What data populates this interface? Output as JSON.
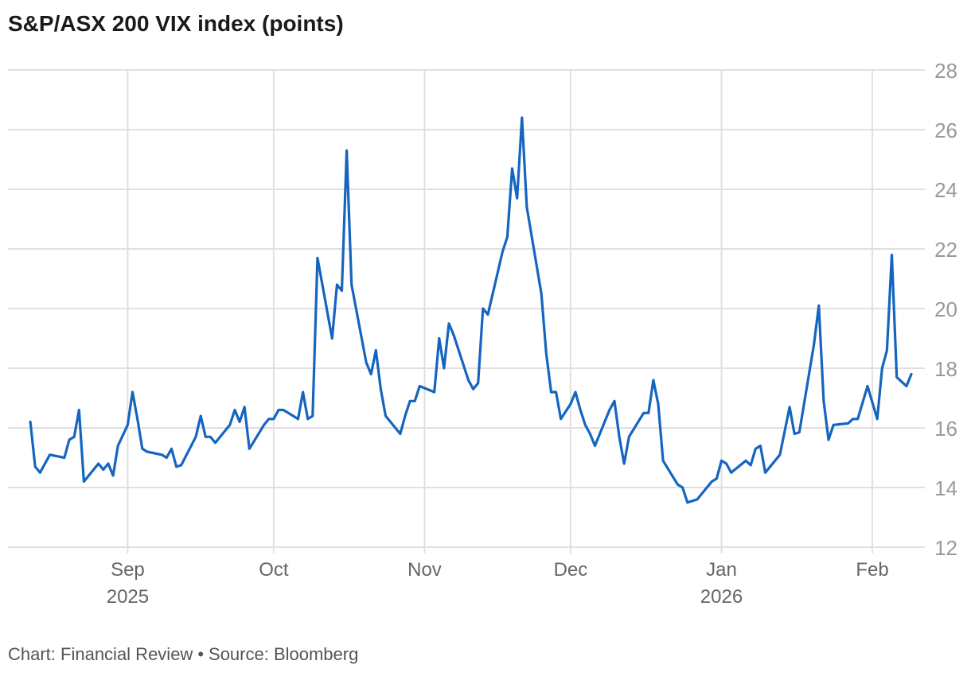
{
  "title": "S&P/ASX 200 VIX index (points)",
  "footer": {
    "chart_credit": "Chart: Financial Review",
    "separator": "•",
    "source": "Source: Bloomberg"
  },
  "colors": {
    "line": "#1565c0",
    "grid": "#e0e0e0",
    "tick_text": "#999999",
    "month_text": "#666666"
  },
  "chart_data": {
    "type": "line",
    "title": "S&P/ASX 200 VIX index (points)",
    "xlabel": "",
    "ylabel": "",
    "ylim": [
      12,
      28
    ],
    "yticks": [
      12,
      14,
      16,
      18,
      20,
      22,
      24,
      26,
      28
    ],
    "y_axis_side": "right",
    "grid": true,
    "xlim": [
      "2025-08-11",
      "2026-02-09"
    ],
    "xticks": [
      {
        "date": "2025-09-01",
        "label": "Sep",
        "year": "2025"
      },
      {
        "date": "2025-10-01",
        "label": "Oct",
        "year": ""
      },
      {
        "date": "2025-11-01",
        "label": "Nov",
        "year": ""
      },
      {
        "date": "2025-12-01",
        "label": "Dec",
        "year": ""
      },
      {
        "date": "2026-01-01",
        "label": "Jan",
        "year": "2026"
      },
      {
        "date": "2026-02-01",
        "label": "Feb",
        "year": ""
      }
    ],
    "series": [
      {
        "color": "#1565c0",
        "points": [
          [
            "2025-08-12",
            16.2
          ],
          [
            "2025-08-13",
            14.7
          ],
          [
            "2025-08-14",
            14.5
          ],
          [
            "2025-08-15",
            14.8
          ],
          [
            "2025-08-16",
            15.1
          ],
          [
            "2025-08-19",
            15.0
          ],
          [
            "2025-08-20",
            15.6
          ],
          [
            "2025-08-21",
            15.7
          ],
          [
            "2025-08-22",
            16.6
          ],
          [
            "2025-08-23",
            14.2
          ],
          [
            "2025-08-26",
            14.8
          ],
          [
            "2025-08-27",
            14.6
          ],
          [
            "2025-08-28",
            14.8
          ],
          [
            "2025-08-29",
            14.4
          ],
          [
            "2025-08-30",
            15.4
          ],
          [
            "2025-09-01",
            16.1
          ],
          [
            "2025-09-02",
            17.2
          ],
          [
            "2025-09-03",
            16.3
          ],
          [
            "2025-09-04",
            15.3
          ],
          [
            "2025-09-05",
            15.2
          ],
          [
            "2025-09-08",
            15.1
          ],
          [
            "2025-09-09",
            15.0
          ],
          [
            "2025-09-10",
            15.3
          ],
          [
            "2025-09-11",
            14.7
          ],
          [
            "2025-09-12",
            14.75
          ],
          [
            "2025-09-15",
            15.7
          ],
          [
            "2025-09-16",
            16.4
          ],
          [
            "2025-09-17",
            15.7
          ],
          [
            "2025-09-18",
            15.7
          ],
          [
            "2025-09-19",
            15.5
          ],
          [
            "2025-09-22",
            16.1
          ],
          [
            "2025-09-23",
            16.6
          ],
          [
            "2025-09-24",
            16.2
          ],
          [
            "2025-09-25",
            16.7
          ],
          [
            "2025-09-26",
            15.3
          ],
          [
            "2025-09-29",
            16.1
          ],
          [
            "2025-09-30",
            16.3
          ],
          [
            "2025-10-01",
            16.3
          ],
          [
            "2025-10-02",
            16.6
          ],
          [
            "2025-10-03",
            16.6
          ],
          [
            "2025-10-06",
            16.3
          ],
          [
            "2025-10-07",
            17.2
          ],
          [
            "2025-10-08",
            16.3
          ],
          [
            "2025-10-09",
            16.4
          ],
          [
            "2025-10-10",
            21.7
          ],
          [
            "2025-10-13",
            19.0
          ],
          [
            "2025-10-14",
            20.8
          ],
          [
            "2025-10-15",
            20.6
          ],
          [
            "2025-10-16",
            25.3
          ],
          [
            "2025-10-17",
            20.8
          ],
          [
            "2025-10-20",
            18.2
          ],
          [
            "2025-10-21",
            17.8
          ],
          [
            "2025-10-22",
            18.6
          ],
          [
            "2025-10-23",
            17.3
          ],
          [
            "2025-10-24",
            16.4
          ],
          [
            "2025-10-27",
            15.8
          ],
          [
            "2025-10-28",
            16.4
          ],
          [
            "2025-10-29",
            16.9
          ],
          [
            "2025-10-30",
            16.9
          ],
          [
            "2025-10-31",
            17.4
          ],
          [
            "2025-11-03",
            17.2
          ],
          [
            "2025-11-04",
            19.0
          ],
          [
            "2025-11-05",
            18.0
          ],
          [
            "2025-11-06",
            19.5
          ],
          [
            "2025-11-07",
            19.1
          ],
          [
            "2025-11-10",
            17.6
          ],
          [
            "2025-11-11",
            17.3
          ],
          [
            "2025-11-12",
            17.5
          ],
          [
            "2025-11-13",
            20.0
          ],
          [
            "2025-11-14",
            19.8
          ],
          [
            "2025-11-17",
            21.9
          ],
          [
            "2025-11-18",
            22.4
          ],
          [
            "2025-11-19",
            24.7
          ],
          [
            "2025-11-20",
            23.7
          ],
          [
            "2025-11-21",
            26.4
          ],
          [
            "2025-11-22",
            23.4
          ],
          [
            "2025-11-25",
            20.5
          ],
          [
            "2025-11-26",
            18.5
          ],
          [
            "2025-11-27",
            17.2
          ],
          [
            "2025-11-28",
            17.2
          ],
          [
            "2025-11-29",
            16.3
          ],
          [
            "2025-12-01",
            16.8
          ],
          [
            "2025-12-02",
            17.2
          ],
          [
            "2025-12-03",
            16.6
          ],
          [
            "2025-12-04",
            16.1
          ],
          [
            "2025-12-05",
            15.8
          ],
          [
            "2025-12-06",
            15.4
          ],
          [
            "2025-12-09",
            16.6
          ],
          [
            "2025-12-10",
            16.9
          ],
          [
            "2025-12-11",
            15.7
          ],
          [
            "2025-12-12",
            14.8
          ],
          [
            "2025-12-13",
            15.7
          ],
          [
            "2025-12-16",
            16.5
          ],
          [
            "2025-12-17",
            16.5
          ],
          [
            "2025-12-18",
            17.6
          ],
          [
            "2025-12-19",
            16.8
          ],
          [
            "2025-12-20",
            14.9
          ],
          [
            "2025-12-23",
            14.1
          ],
          [
            "2025-12-24",
            14.0
          ],
          [
            "2025-12-25",
            13.5
          ],
          [
            "2025-12-27",
            13.6
          ],
          [
            "2025-12-30",
            14.2
          ],
          [
            "2025-12-31",
            14.3
          ],
          [
            "2026-01-01",
            14.9
          ],
          [
            "2026-01-02",
            14.8
          ],
          [
            "2026-01-03",
            14.5
          ],
          [
            "2026-01-06",
            14.9
          ],
          [
            "2026-01-07",
            14.75
          ],
          [
            "2026-01-08",
            15.3
          ],
          [
            "2026-01-09",
            15.4
          ],
          [
            "2026-01-10",
            14.5
          ],
          [
            "2026-01-13",
            15.1
          ],
          [
            "2026-01-14",
            15.9
          ],
          [
            "2026-01-15",
            16.7
          ],
          [
            "2026-01-16",
            15.8
          ],
          [
            "2026-01-17",
            15.85
          ],
          [
            "2026-01-20",
            18.8
          ],
          [
            "2026-01-21",
            20.1
          ],
          [
            "2026-01-22",
            16.9
          ],
          [
            "2026-01-23",
            15.6
          ],
          [
            "2026-01-24",
            16.1
          ],
          [
            "2026-01-27",
            16.15
          ],
          [
            "2026-01-28",
            16.3
          ],
          [
            "2026-01-29",
            16.3
          ],
          [
            "2026-01-31",
            17.4
          ],
          [
            "2026-02-02",
            16.3
          ],
          [
            "2026-02-03",
            18.0
          ],
          [
            "2026-02-04",
            18.6
          ],
          [
            "2026-02-05",
            21.8
          ],
          [
            "2026-02-06",
            17.7
          ],
          [
            "2026-02-08",
            17.4
          ],
          [
            "2026-02-09",
            17.8
          ]
        ]
      }
    ]
  }
}
